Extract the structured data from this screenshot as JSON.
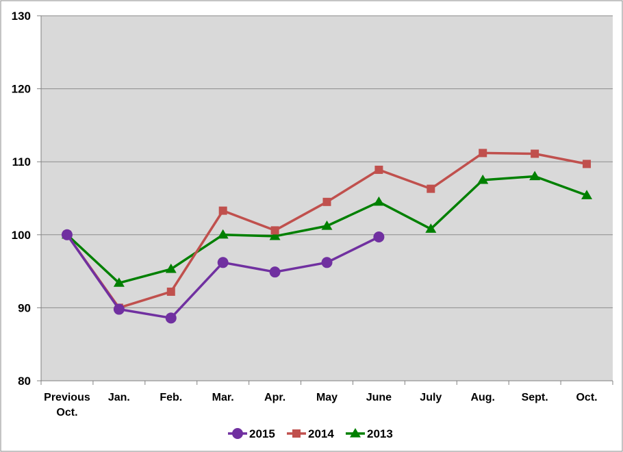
{
  "chart_data": {
    "type": "line",
    "categories": [
      [
        "Previous",
        "Oct."
      ],
      [
        "Jan."
      ],
      [
        "Feb."
      ],
      [
        "Mar."
      ],
      [
        "Apr."
      ],
      [
        "May"
      ],
      [
        "June"
      ],
      [
        "July"
      ],
      [
        "Aug."
      ],
      [
        "Sept."
      ],
      [
        "Oct."
      ]
    ],
    "ylim": [
      80,
      130
    ],
    "yticks": [
      80,
      90,
      100,
      110,
      120,
      130
    ],
    "grid": true,
    "legend_position": "bottom",
    "colors": {
      "plot_background": "#d9d9d9",
      "gridline": "#8c8c8c",
      "axis": "#808080"
    },
    "series": [
      {
        "name": "2015",
        "color": "#7030a0",
        "marker": "circle",
        "values": [
          100,
          89.8,
          88.6,
          96.2,
          94.9,
          96.2,
          99.7,
          null,
          null,
          null,
          null
        ]
      },
      {
        "name": "2014",
        "color": "#c0504d",
        "marker": "square",
        "values": [
          100,
          90,
          92.2,
          103.3,
          100.6,
          104.5,
          108.9,
          106.3,
          111.2,
          111.1,
          109.7
        ]
      },
      {
        "name": "2013",
        "color": "#008000",
        "marker": "triangle",
        "values": [
          100,
          93.4,
          95.3,
          100,
          99.8,
          101.2,
          104.5,
          100.8,
          107.5,
          108,
          105.4
        ]
      }
    ]
  }
}
